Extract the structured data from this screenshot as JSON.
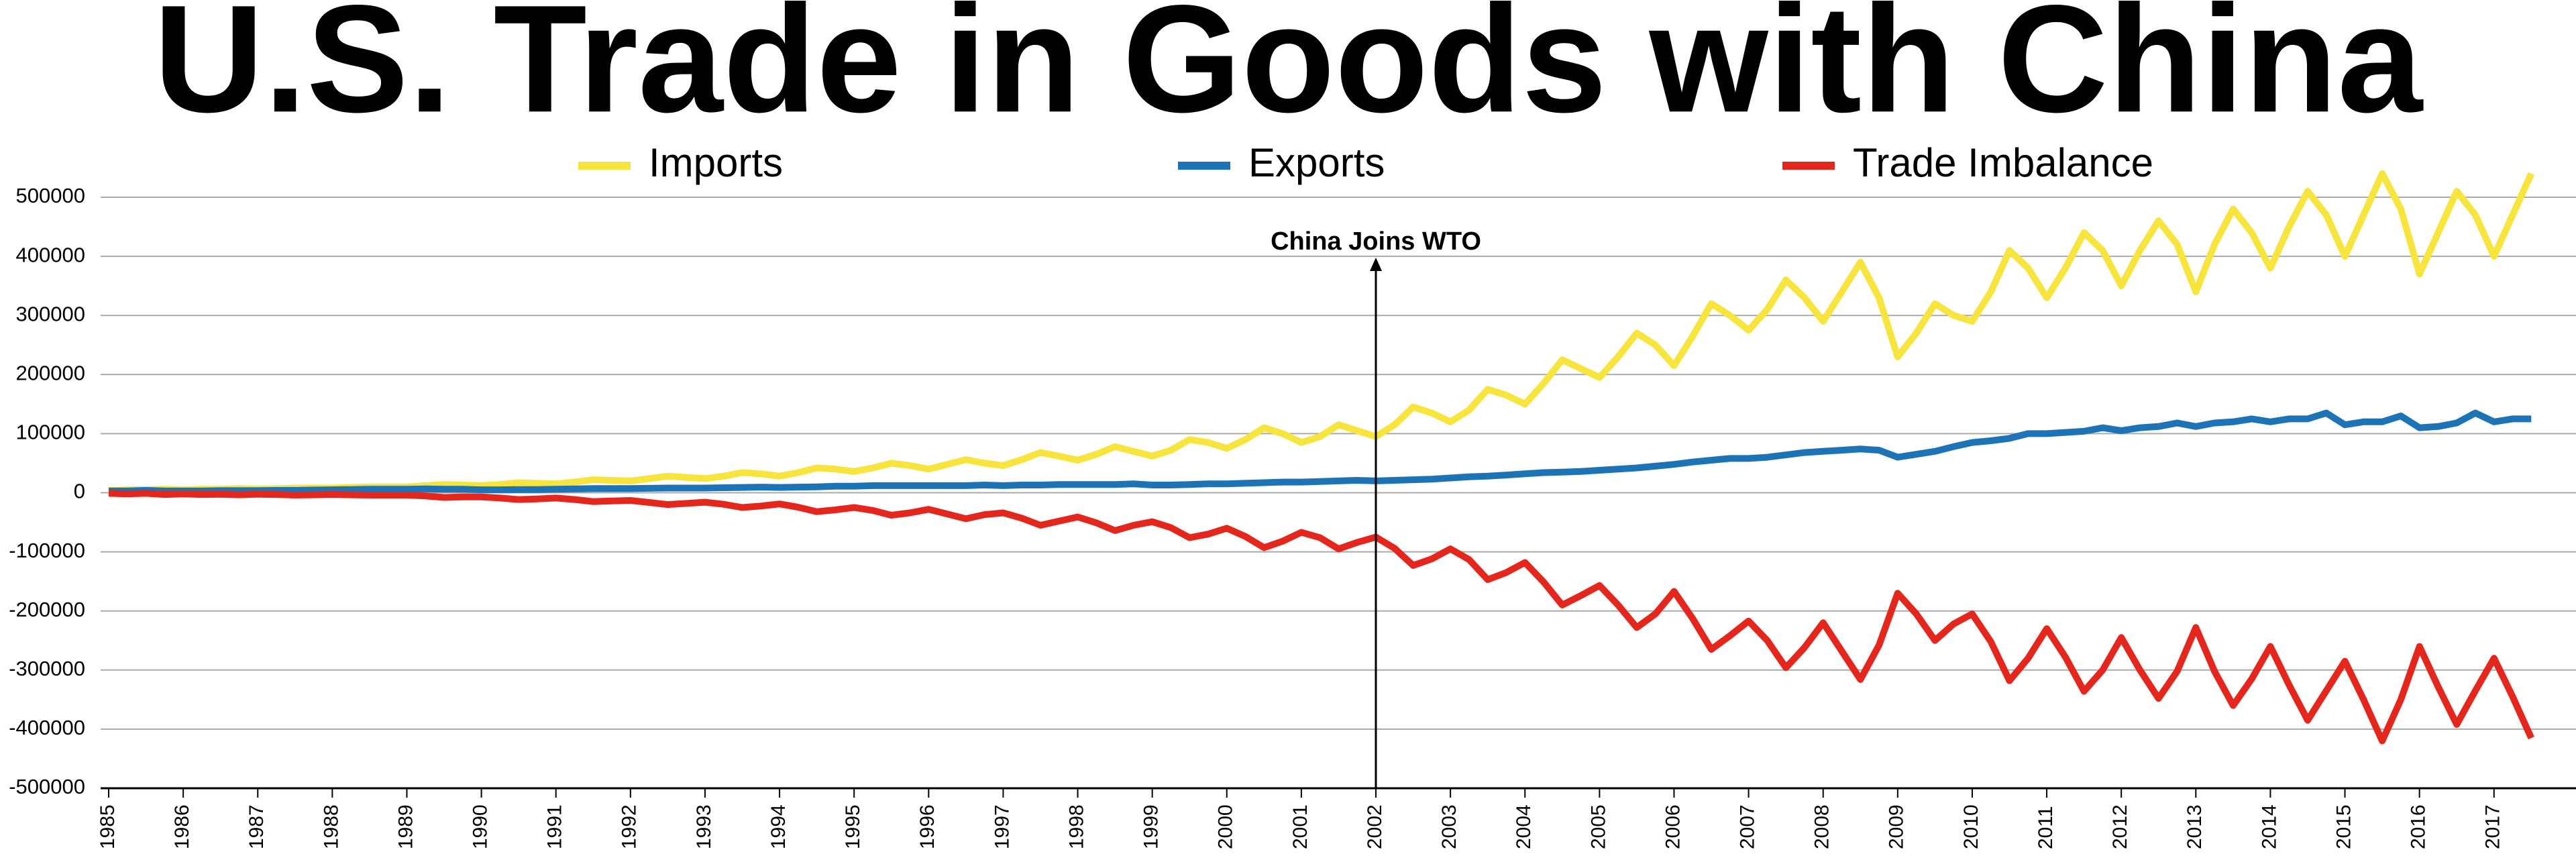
{
  "chart_data": {
    "type": "line",
    "title": "U.S. Trade in Goods with China",
    "x": [
      1985,
      1985.25,
      1985.5,
      1985.75,
      1986,
      1986.25,
      1986.5,
      1986.75,
      1987,
      1987.25,
      1987.5,
      1987.75,
      1988,
      1988.25,
      1988.5,
      1988.75,
      1989,
      1989.25,
      1989.5,
      1989.75,
      1990,
      1990.25,
      1990.5,
      1990.75,
      1991,
      1991.25,
      1991.5,
      1991.75,
      1992,
      1992.25,
      1992.5,
      1992.75,
      1993,
      1993.25,
      1993.5,
      1993.75,
      1994,
      1994.25,
      1994.5,
      1994.75,
      1995,
      1995.25,
      1995.5,
      1995.75,
      1996,
      1996.25,
      1996.5,
      1996.75,
      1997,
      1997.25,
      1997.5,
      1997.75,
      1998,
      1998.25,
      1998.5,
      1998.75,
      1999,
      1999.25,
      1999.5,
      1999.75,
      2000,
      2000.25,
      2000.5,
      2000.75,
      2001,
      2001.25,
      2001.5,
      2001.75,
      2002,
      2002.25,
      2002.5,
      2002.75,
      2003,
      2003.25,
      2003.5,
      2003.75,
      2004,
      2004.25,
      2004.5,
      2004.75,
      2005,
      2005.25,
      2005.5,
      2005.75,
      2006,
      2006.25,
      2006.5,
      2006.75,
      2007,
      2007.25,
      2007.5,
      2007.75,
      2008,
      2008.25,
      2008.5,
      2008.75,
      2009,
      2009.25,
      2009.5,
      2009.75,
      2010,
      2010.25,
      2010.5,
      2010.75,
      2011,
      2011.25,
      2011.5,
      2011.75,
      2012,
      2012.25,
      2012.5,
      2012.75,
      2013,
      2013.25,
      2013.5,
      2013.75,
      2014,
      2014.25,
      2014.5,
      2014.75,
      2015,
      2015.25,
      2015.5,
      2015.75,
      2016,
      2016.25,
      2016.5,
      2016.75,
      2017,
      2017.25,
      2017.5
    ],
    "series": [
      {
        "name": "Imports",
        "color": "#f7e43c",
        "values": [
          4000,
          5000,
          5000,
          6000,
          5000,
          6000,
          6000,
          7000,
          6000,
          7000,
          8000,
          8000,
          8000,
          9000,
          10000,
          10000,
          10000,
          12000,
          14000,
          13000,
          12000,
          14000,
          17000,
          16000,
          15000,
          18000,
          22000,
          21000,
          20000,
          24000,
          28000,
          26000,
          24000,
          28000,
          34000,
          32000,
          28000,
          34000,
          42000,
          40000,
          36000,
          42000,
          50000,
          46000,
          40000,
          48000,
          56000,
          50000,
          46000,
          56000,
          68000,
          62000,
          55000,
          65000,
          78000,
          70000,
          62000,
          72000,
          90000,
          85000,
          75000,
          90000,
          110000,
          100000,
          85000,
          95000,
          115000,
          105000,
          95000,
          115000,
          145000,
          135000,
          120000,
          140000,
          175000,
          165000,
          150000,
          185000,
          225000,
          210000,
          195000,
          230000,
          270000,
          250000,
          215000,
          265000,
          320000,
          300000,
          275000,
          310000,
          360000,
          330000,
          290000,
          340000,
          390000,
          330000,
          230000,
          270000,
          320000,
          300000,
          290000,
          340000,
          410000,
          380000,
          330000,
          380000,
          440000,
          410000,
          350000,
          410000,
          460000,
          420000,
          340000,
          420000,
          480000,
          440000,
          380000,
          450000,
          510000,
          470000,
          400000,
          470000,
          540000,
          480000,
          370000,
          440000,
          510000,
          470000,
          400000,
          470000,
          540000
        ]
      },
      {
        "name": "Exports",
        "color": "#1c74b6",
        "values": [
          3000,
          3000,
          4000,
          3000,
          3000,
          3000,
          3500,
          3500,
          3500,
          4000,
          4000,
          4500,
          5000,
          5500,
          6000,
          6000,
          6000,
          6500,
          6000,
          6000,
          5000,
          5000,
          5500,
          5500,
          6000,
          6500,
          7000,
          7000,
          7000,
          7500,
          8000,
          8000,
          8000,
          8500,
          9000,
          9500,
          9000,
          9500,
          10000,
          11000,
          11000,
          12000,
          12000,
          12000,
          12000,
          12000,
          12000,
          13000,
          12000,
          13000,
          13000,
          14000,
          14000,
          14000,
          14000,
          15000,
          13000,
          13000,
          14000,
          15000,
          15000,
          16000,
          17000,
          18000,
          18000,
          19000,
          20000,
          21000,
          20000,
          21000,
          22000,
          23000,
          25000,
          27000,
          28000,
          30000,
          32000,
          34000,
          35000,
          36000,
          38000,
          40000,
          42000,
          45000,
          48000,
          52000,
          55000,
          58000,
          58000,
          60000,
          64000,
          68000,
          70000,
          72000,
          74000,
          72000,
          60000,
          65000,
          70000,
          78000,
          85000,
          88000,
          92000,
          100000,
          100000,
          102000,
          104000,
          110000,
          105000,
          110000,
          112000,
          118000,
          112000,
          118000,
          120000,
          125000,
          120000,
          125000,
          125000,
          135000,
          115000,
          120000,
          120000,
          130000,
          110000,
          112000,
          118000,
          135000,
          120000,
          125000,
          125000
        ]
      },
      {
        "name": "Trade Imbalance",
        "color": "#e5261c",
        "values": [
          -1000,
          -2000,
          -1000,
          -3000,
          -2000,
          -3000,
          -2500,
          -3500,
          -2500,
          -3000,
          -4000,
          -3500,
          -3000,
          -3500,
          -4000,
          -4000,
          -4000,
          -5500,
          -8000,
          -7000,
          -7000,
          -9000,
          -11500,
          -10500,
          -9000,
          -11500,
          -15000,
          -14000,
          -13000,
          -16500,
          -20000,
          -18000,
          -16000,
          -19500,
          -25000,
          -22500,
          -19000,
          -24500,
          -32000,
          -29000,
          -25000,
          -30000,
          -38000,
          -34000,
          -28000,
          -36000,
          -44000,
          -37000,
          -34000,
          -43000,
          -55000,
          -48000,
          -41000,
          -51000,
          -64000,
          -55000,
          -49000,
          -59000,
          -76000,
          -70000,
          -60000,
          -74000,
          -93000,
          -82000,
          -67000,
          -76000,
          -95000,
          -84000,
          -75000,
          -94000,
          -123000,
          -112000,
          -95000,
          -113000,
          -147000,
          -135000,
          -118000,
          -151000,
          -190000,
          -174000,
          -157000,
          -190000,
          -228000,
          -205000,
          -167000,
          -213000,
          -265000,
          -242000,
          -217000,
          -250000,
          -296000,
          -262000,
          -220000,
          -268000,
          -316000,
          -258000,
          -170000,
          -205000,
          -250000,
          -222000,
          -205000,
          -252000,
          -318000,
          -280000,
          -230000,
          -278000,
          -336000,
          -300000,
          -245000,
          -300000,
          -348000,
          -302000,
          -228000,
          -302000,
          -360000,
          -315000,
          -260000,
          -325000,
          -385000,
          -335000,
          -285000,
          -350000,
          -420000,
          -350000,
          -260000,
          -328000,
          -392000,
          -335000,
          -280000,
          -345000,
          -415000
        ]
      }
    ],
    "xlim": [
      1985,
      2018.1
    ],
    "xticks": [
      1985,
      1986,
      1987,
      1988,
      1989,
      1990,
      1991,
      1992,
      1993,
      1994,
      1995,
      1996,
      1997,
      1998,
      1999,
      2000,
      2001,
      2002,
      2003,
      2004,
      2005,
      2006,
      2007,
      2008,
      2009,
      2010,
      2011,
      2012,
      2013,
      2014,
      2015,
      2016,
      2017
    ],
    "ylim": [
      -500000,
      500000
    ],
    "yticks": [
      -500000,
      -400000,
      -300000,
      -200000,
      -100000,
      0,
      100000,
      200000,
      300000,
      400000,
      500000
    ],
    "grid": true,
    "annotations": [
      {
        "text": "China Joins WTO",
        "x": 2002
      }
    ]
  }
}
